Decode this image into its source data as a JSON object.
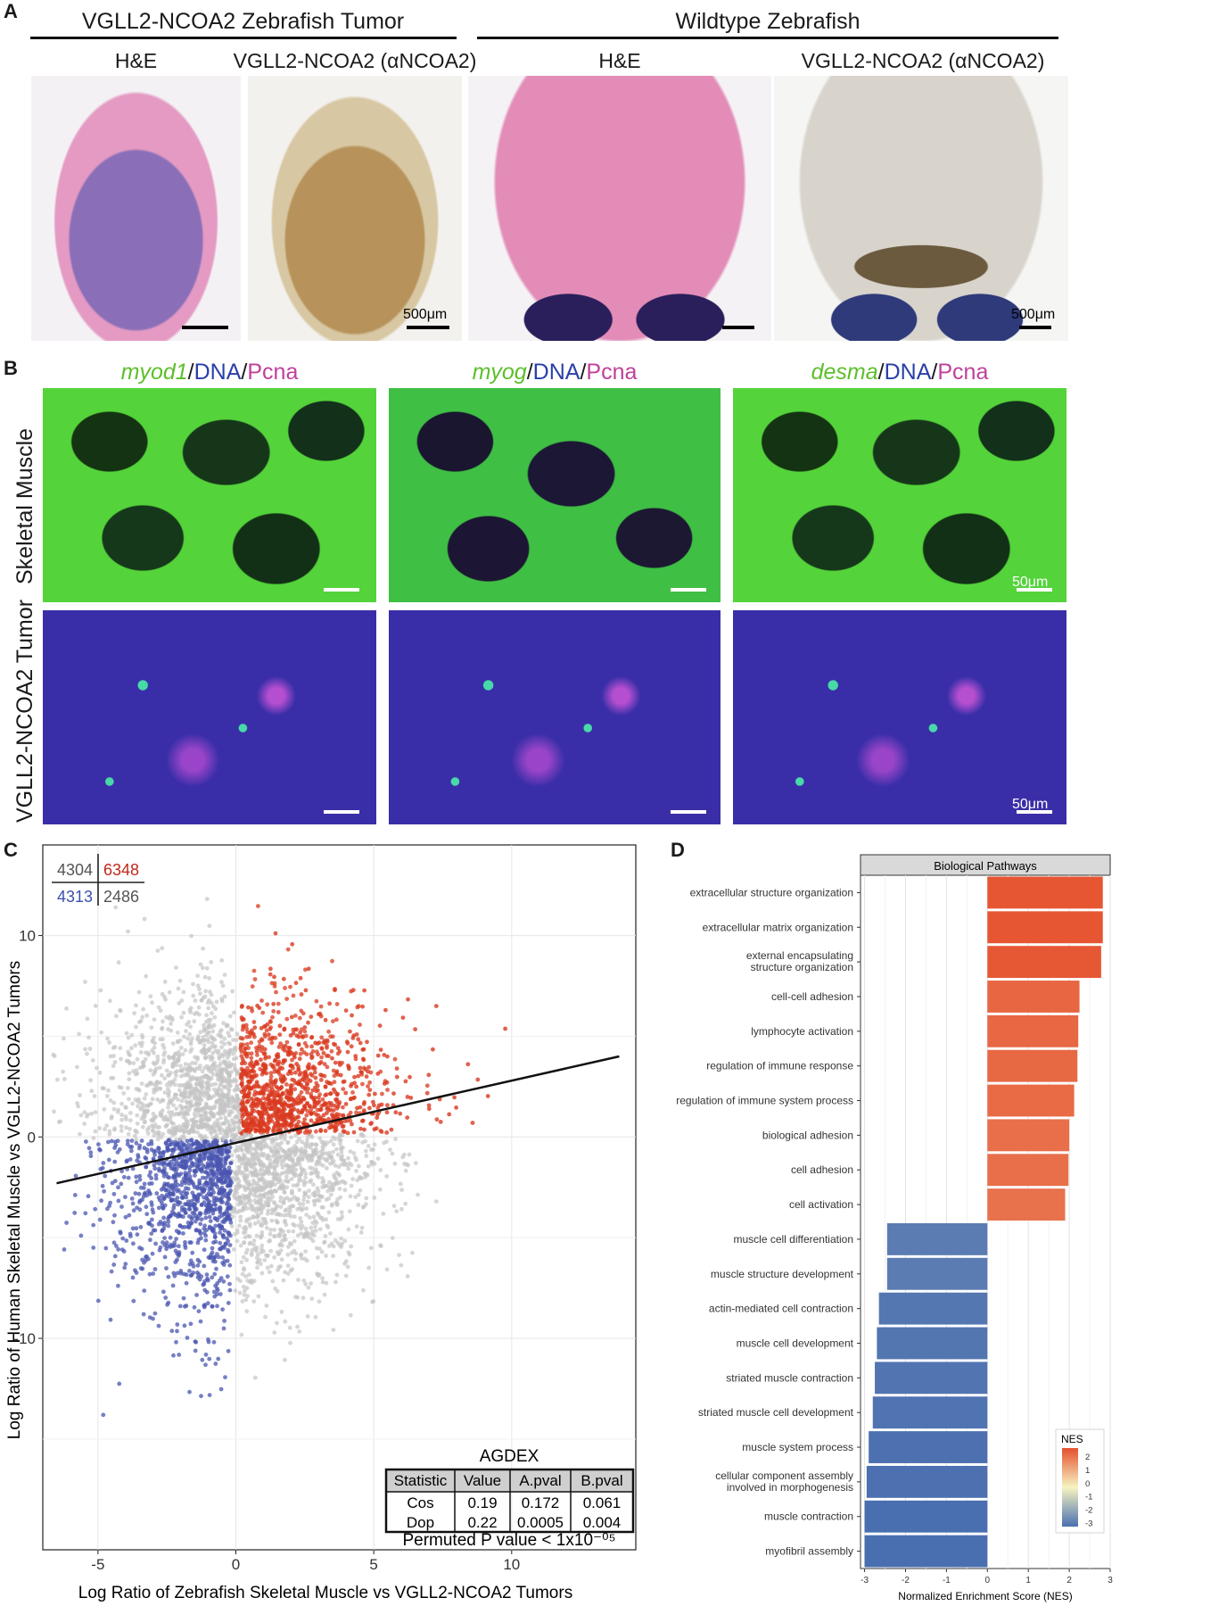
{
  "panelA": {
    "label": "A",
    "group_left": "VGLL2-NCOA2 Zebrafish Tumor",
    "group_right": "Wildtype Zebrafish",
    "col1": "H&E",
    "col2": "VGLL2-NCOA2 (αNCOA2)",
    "col3": "H&E",
    "col4": "VGLL2-NCOA2 (αNCOA2)",
    "scalebar": "500μm"
  },
  "panelB": {
    "label": "B",
    "col1": {
      "gene": "myod1",
      "dna": "DNA",
      "pcna": "Pcna",
      "sep": "/"
    },
    "col2": {
      "gene": "myog",
      "dna": "DNA",
      "pcna": "Pcna",
      "sep": "/"
    },
    "col3": {
      "gene": "desma",
      "dna": "DNA",
      "pcna": "Pcna",
      "sep": "/"
    },
    "row1": "Skeletal Muscle",
    "row2": "VGLL2-NCOA2 Tumor",
    "scalebar": "50μm"
  },
  "panelC": {
    "label": "C",
    "chart_data": {
      "type": "scatter",
      "xlabel": "Log Ratio of Zebrafish Skeletal Muscle vs VGLL2-NCOA2 Tumors",
      "ylabel": "Log Ratio of Human Skeletal Muscle vs VGLL2-NCOA2 Tumors",
      "xlim": [
        -7,
        14.5
      ],
      "ylim": [
        -20.5,
        14.5
      ],
      "xticks": [
        -5,
        0,
        5,
        10
      ],
      "yticks": [
        -10,
        0,
        10
      ],
      "grid": true,
      "quadrant_counts": {
        "top_left": "4304",
        "top_right": "6348",
        "bottom_left": "4313",
        "bottom_right": "2486"
      },
      "fit_line": {
        "x": [
          -6.5,
          13.9
        ],
        "y": [
          -2.3,
          4.0
        ]
      },
      "annotation_title": "AGDEX",
      "table": {
        "headers": [
          "Statistic",
          "Value",
          "A.pval",
          "B.pval"
        ],
        "rows": [
          [
            "Cos",
            "0.19",
            "0.172",
            "0.061"
          ],
          [
            "Dop",
            "0.22",
            "0.0005",
            "0.004"
          ]
        ]
      },
      "permuted_p": "Permuted P value < 1x10⁻⁰⁵",
      "colors": {
        "up": "#d93a1f",
        "down": "#4a55b0",
        "other": "#c4c4c4"
      }
    }
  },
  "panelD": {
    "label": "D",
    "chart_data": {
      "type": "bar",
      "orientation": "horizontal",
      "strip_title": "Biological Pathways",
      "xlabel": "Normalized Enrichment Score (NES)",
      "xlim": [
        -3.1,
        3.0
      ],
      "xticks": [
        -3,
        -2,
        -1,
        0,
        1,
        2,
        3
      ],
      "legend_title": "NES",
      "legend_ticks": [
        2,
        1,
        0,
        -1,
        -2,
        -3
      ],
      "categories": [
        "extracellular structure organization",
        "extracellular matrix organization",
        "external encapsulating structure organization",
        "cell-cell adhesion",
        "lymphocyte activation",
        "regulation of immune response",
        "regulation of immune system process",
        "biological adhesion",
        "cell adhesion",
        "cell activation",
        "muscle cell differentiation",
        "muscle structure development",
        "actin-mediated cell contraction",
        "muscle cell development",
        "striated muscle contraction",
        "striated muscle cell development",
        "muscle system process",
        "cellular component assembly involved in morphogenesis",
        "muscle contraction",
        "myofibril assembly"
      ],
      "values": [
        2.82,
        2.82,
        2.78,
        2.25,
        2.22,
        2.2,
        2.12,
        2.0,
        1.98,
        1.9,
        -2.45,
        -2.45,
        -2.65,
        -2.7,
        -2.75,
        -2.8,
        -2.9,
        -2.95,
        -3.0,
        -3.0
      ],
      "colors": {
        "high": "#e5512e",
        "mid": "#f6f3c2",
        "low": "#4a6fb0"
      }
    }
  }
}
